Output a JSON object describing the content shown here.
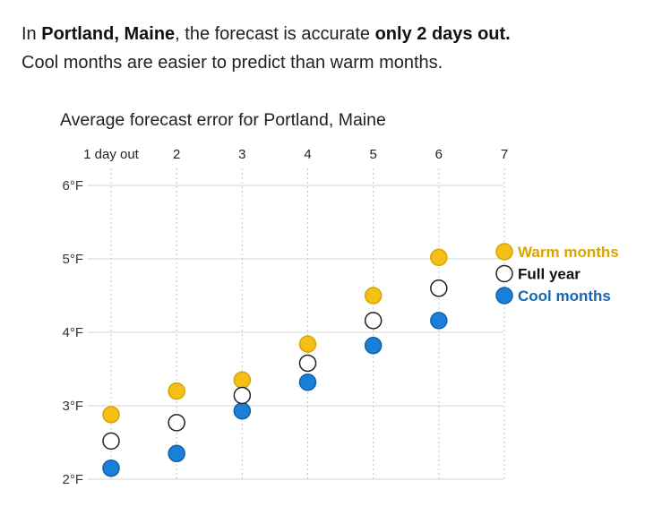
{
  "headline": {
    "line1": [
      {
        "text": "In ",
        "bold": false
      },
      {
        "text": "Portland, Maine",
        "bold": true
      },
      {
        "text": ", the forecast is accurate ",
        "bold": false
      },
      {
        "text": "only 2 days out.",
        "bold": true
      }
    ],
    "line2": "Cool months are easier to predict than warm months."
  },
  "chart_data": {
    "type": "scatter",
    "title": "Average forecast error for Portland, Maine",
    "x": [
      1,
      2,
      3,
      4,
      5,
      6,
      7
    ],
    "x_tick_labels": [
      "1 day out",
      "2",
      "3",
      "4",
      "5",
      "6",
      "7"
    ],
    "y_ticks": [
      2,
      3,
      4,
      5,
      6
    ],
    "y_tick_labels": [
      "2°F",
      "3°F",
      "4°F",
      "5°F",
      "6°F"
    ],
    "ylim": [
      2,
      6
    ],
    "grid": true,
    "legend_placement": "right",
    "series": [
      {
        "name": "Warm months",
        "color": "#f4c018",
        "stroke": "#d9a300",
        "text_color": "#d9a300",
        "values": [
          2.88,
          3.2,
          3.35,
          3.84,
          4.5,
          5.02,
          null
        ]
      },
      {
        "name": "Full year",
        "color": "#ffffff",
        "stroke": "#222222",
        "text_color": "#111111",
        "values": [
          2.52,
          2.77,
          3.14,
          3.58,
          4.16,
          4.6,
          null
        ]
      },
      {
        "name": "Cool months",
        "color": "#1a7fd9",
        "stroke": "#1360a8",
        "text_color": "#1766b3",
        "values": [
          2.15,
          2.35,
          2.93,
          3.32,
          3.82,
          4.16,
          null
        ]
      }
    ]
  }
}
